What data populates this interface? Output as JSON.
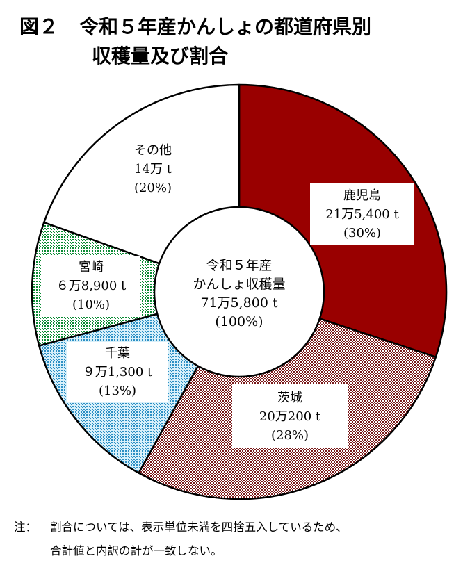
{
  "figure": {
    "number": "図２",
    "title_line1": "令和５年産かんしょの都道府県別",
    "title_line2": "収穫量及び割合"
  },
  "chart_data": {
    "type": "pie",
    "subtype": "donut",
    "center": {
      "line1": "令和５年産",
      "line2": "かんしょ収穫量",
      "line3": "71万5,800 t",
      "line4": "(100%)"
    },
    "slices": [
      {
        "name": "鹿児島",
        "value_label": "21万5,400 t",
        "value": 215400,
        "percent": 30,
        "percent_label": "(30%)",
        "color": "#990000",
        "pattern": "solid"
      },
      {
        "name": "茨城",
        "value_label": "20万200 t",
        "value": 200200,
        "percent": 28,
        "percent_label": "(28%)",
        "color": "#a05050",
        "pattern": "crosshatch-dark"
      },
      {
        "name": "千葉",
        "value_label": "９万1,300 t",
        "value": 91300,
        "percent": 13,
        "percent_label": "(13%)",
        "color": "#3399cc",
        "pattern": "dots-blue"
      },
      {
        "name": "宮崎",
        "value_label": "６万8,900 t",
        "value": 68900,
        "percent": 10,
        "percent_label": "(10%)",
        "color": "#009933",
        "pattern": "dots-green"
      },
      {
        "name": "その他",
        "value_label": "14万 t",
        "value": 140000,
        "percent": 20,
        "percent_label": "(20%)",
        "color": "#ffffff",
        "pattern": "none"
      }
    ],
    "start": "12 o'clock",
    "direction": "clockwise"
  },
  "note": {
    "label": "注：",
    "line1": "割合については、表示単位未満を四捨五入しているため、",
    "line2": "合計値と内訳の計が一致しない。"
  }
}
